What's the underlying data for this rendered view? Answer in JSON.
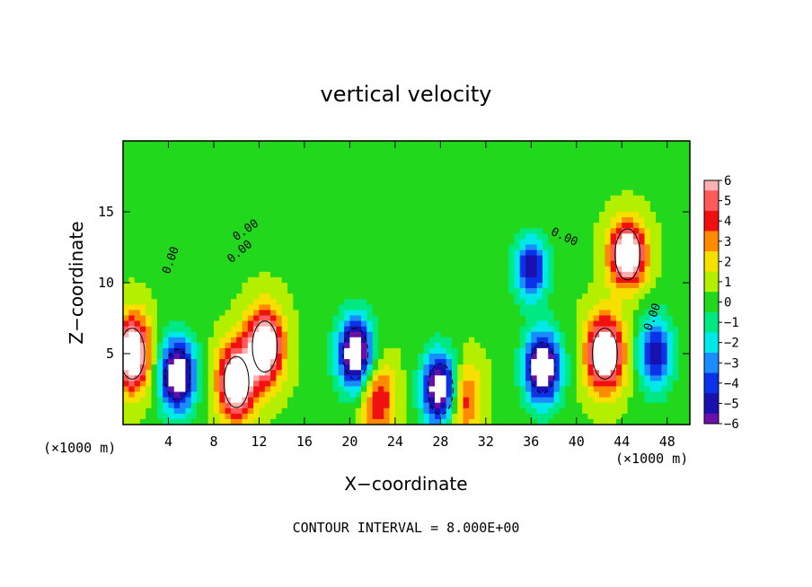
{
  "chart_data": {
    "type": "heatmap",
    "title": "vertical velocity",
    "xlabel": "X−coordinate",
    "ylabel": "Z−coordinate",
    "x_unit_label": "(×1000 m)",
    "x_unit_label_right": "(×1000 m)",
    "footer": "CONTOUR INTERVAL = 8.000E+00",
    "xlim": [
      0,
      50
    ],
    "ylim": [
      0,
      20
    ],
    "x_ticks": [
      4,
      8,
      12,
      16,
      20,
      24,
      28,
      32,
      36,
      40,
      44,
      48
    ],
    "y_ticks": [
      5,
      10,
      15
    ],
    "contour_labels": [
      "0.00",
      "0.00",
      "0.00",
      "0.00",
      "0.00"
    ],
    "colorbar": {
      "min": -6,
      "max": 6,
      "labels": [
        "6",
        "5",
        "4",
        "3",
        "2",
        "1",
        "0",
        "−1",
        "−2",
        "−3",
        "−4",
        "−5",
        "−6"
      ]
    },
    "features": [
      {
        "x": 0.8,
        "z": 5.0,
        "w": 6.5,
        "kind": "updraft core"
      },
      {
        "x": 4.8,
        "z": 3.5,
        "w": -6.5,
        "kind": "downdraft core"
      },
      {
        "x": 10.0,
        "z": 3.0,
        "w": 6.5,
        "kind": "updraft core"
      },
      {
        "x": 12.5,
        "z": 5.5,
        "w": 6.5,
        "kind": "updraft core"
      },
      {
        "x": 20.5,
        "z": 5.0,
        "w": -6.5,
        "kind": "downdraft core"
      },
      {
        "x": 22.5,
        "z": 1.8,
        "w": 3.5,
        "kind": "updraft"
      },
      {
        "x": 28.0,
        "z": 2.5,
        "w": -6.5,
        "kind": "downdraft core"
      },
      {
        "x": 30.0,
        "z": 1.8,
        "w": 3.5,
        "kind": "updraft"
      },
      {
        "x": 36.0,
        "z": 11.0,
        "w": -4.5,
        "kind": "downdraft"
      },
      {
        "x": 37.0,
        "z": 4.0,
        "w": -6.5,
        "kind": "downdraft core"
      },
      {
        "x": 42.5,
        "z": 5.0,
        "w": 6.5,
        "kind": "updraft core"
      },
      {
        "x": 44.5,
        "z": 12.0,
        "w": 6.5,
        "kind": "updraft core"
      },
      {
        "x": 47.0,
        "z": 5.0,
        "w": -4.5,
        "kind": "downdraft"
      }
    ]
  }
}
